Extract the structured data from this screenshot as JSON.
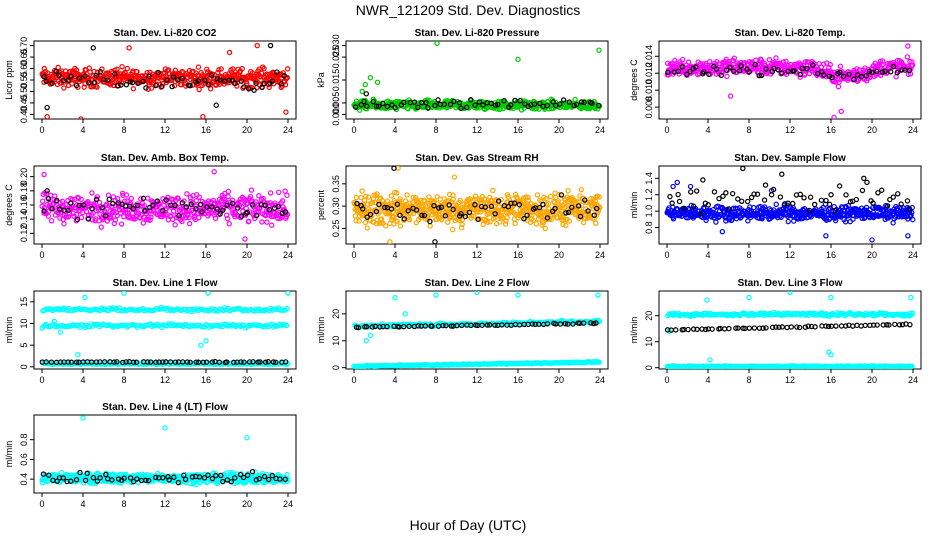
{
  "title": "NWR_121209  Std. Dev. Diagnostics",
  "xlabel": "Hour of Day (UTC)",
  "colors": {
    "co2": "#ff0000",
    "pressure": "#00cc00",
    "temp": "#ff00ff",
    "rh": "#ffa500",
    "flow": "#0000ff",
    "line": "#00ffff",
    "highlight": "#000000"
  },
  "chart_data": [
    {
      "type": "scatter",
      "title": "Stan. Dev. Li-820 CO2",
      "ylabel": "Licor ppm",
      "xlim": [
        0,
        24
      ],
      "xticks": [
        0,
        4,
        8,
        12,
        16,
        20,
        24
      ],
      "ylim": [
        0.38,
        0.72
      ],
      "yticks": [
        "0.40",
        "0.45",
        "0.50",
        "0.55",
        "0.60",
        "0.65",
        "0.70"
      ],
      "series": [
        {
          "color": "co2",
          "band": [
            0.5,
            0.62
          ],
          "n": 450,
          "outliers": [
            [
              0.5,
              0.39
            ],
            [
              3.8,
              0.38
            ],
            [
              8.5,
              0.69
            ],
            [
              15.7,
              0.39
            ],
            [
              18.3,
              0.67
            ],
            [
              21,
              0.7
            ],
            [
              23.8,
              0.41
            ]
          ]
        },
        {
          "color": "highlight",
          "band": [
            0.49,
            0.6
          ],
          "n": 60,
          "outliers": [
            [
              0.5,
              0.43
            ],
            [
              5,
              0.69
            ],
            [
              17,
              0.44
            ],
            [
              22.3,
              0.7
            ]
          ]
        }
      ]
    },
    {
      "type": "scatter",
      "title": "Stan. Dev. Li-820 Pressure",
      "ylabel": "kPa",
      "xlim": [
        0,
        24
      ],
      "xticks": [
        0,
        4,
        8,
        12,
        16,
        20,
        24
      ],
      "ylim": [
        -0.002,
        0.032
      ],
      "yticks": [
        "0.000",
        "0.005",
        "0.015",
        "0.025",
        "0.030"
      ],
      "series": [
        {
          "color": "pressure",
          "band": [
            0.001,
            0.007
          ],
          "n": 450,
          "outliers": [
            [
              1.1,
              0.013
            ],
            [
              1.6,
              0.016
            ],
            [
              2.3,
              0.014
            ],
            [
              8.1,
              0.031
            ],
            [
              16,
              0.024
            ],
            [
              23.9,
              0.028
            ],
            [
              0.8,
              0.01
            ]
          ]
        },
        {
          "color": "highlight",
          "band": [
            0.002,
            0.007
          ],
          "n": 60,
          "outliers": [
            [
              1.2,
              0.009
            ]
          ]
        }
      ]
    },
    {
      "type": "scatter",
      "title": "Stan. Dev. Li-820 Temp.",
      "ylabel": "degrees C",
      "xlim": [
        0,
        24
      ],
      "xticks": [
        0,
        4,
        8,
        12,
        16,
        20,
        24
      ],
      "ylim": [
        0.0066,
        0.0158
      ],
      "yticks": [
        "0.008",
        "0.010",
        "0.012",
        "0.014"
      ],
      "series": [
        {
          "color": "temp",
          "band": [
            0.0112,
            0.0142
          ],
          "n": 450,
          "dip": true,
          "outliers": [
            [
              16.3,
              0.0068
            ],
            [
              23.5,
              0.0152
            ],
            [
              6.2,
              0.0093
            ],
            [
              17,
              0.0075
            ]
          ]
        },
        {
          "color": "highlight",
          "band": [
            0.0115,
            0.0132
          ],
          "n": 60,
          "dip": true,
          "outliers": []
        }
      ]
    },
    {
      "type": "scatter",
      "title": "Stan. Dev. Amb. Box Temp.",
      "ylabel": "degrees C",
      "xlim": [
        0,
        24
      ],
      "xticks": [
        0,
        4,
        8,
        12,
        16,
        20,
        24
      ],
      "ylim": [
        0.105,
        0.215
      ],
      "yticks": [
        "0.12",
        "0.14",
        "0.16",
        "0.18",
        "0.20"
      ],
      "series": [
        {
          "color": "temp",
          "band": [
            0.125,
            0.185
          ],
          "n": 450,
          "outliers": [
            [
              16.8,
              0.207
            ],
            [
              19.8,
              0.112
            ],
            [
              0.2,
              0.203
            ]
          ]
        },
        {
          "color": "highlight",
          "band": [
            0.13,
            0.18
          ],
          "n": 60,
          "outliers": [
            [
              0.5,
              0.18
            ]
          ]
        }
      ]
    },
    {
      "type": "scatter",
      "title": "Stan. Dev. Gas Stream RH",
      "ylabel": "percent",
      "xlim": [
        0,
        24
      ],
      "xticks": [
        0,
        4,
        8,
        12,
        16,
        20,
        24
      ],
      "ylim": [
        0.215,
        0.39
      ],
      "yticks": [
        "0.25",
        "0.30",
        "0.35"
      ],
      "series": [
        {
          "color": "rh",
          "band": [
            0.24,
            0.345
          ],
          "n": 600,
          "outliers": [
            [
              4.3,
              0.385
            ],
            [
              9.8,
              0.365
            ],
            [
              3.5,
              0.22
            ]
          ]
        },
        {
          "color": "highlight",
          "band": [
            0.255,
            0.33
          ],
          "n": 60,
          "outliers": [
            [
              3.9,
              0.385
            ],
            [
              7.9,
              0.22
            ]
          ]
        }
      ]
    },
    {
      "type": "scatter",
      "title": "Stan. Dev. Sample Flow",
      "ylabel": "ml/min",
      "xlim": [
        0,
        24
      ],
      "xticks": [
        0,
        4,
        8,
        12,
        16,
        20,
        24
      ],
      "ylim": [
        0.6,
        1.55
      ],
      "yticks": [
        "0.8",
        "1.0",
        "1.2",
        "1.4"
      ],
      "series": [
        {
          "color": "flow",
          "band": [
            0.85,
            1.1
          ],
          "n": 500,
          "outliers": [
            [
              0.6,
              1.3
            ],
            [
              1,
              1.35
            ],
            [
              2.3,
              1.3
            ],
            [
              5.4,
              0.75
            ],
            [
              10.2,
              1.25
            ],
            [
              15.5,
              0.7
            ],
            [
              20,
              0.65
            ],
            [
              23.5,
              0.7
            ]
          ]
        },
        {
          "color": "highlight",
          "band": [
            0.9,
            1.4
          ],
          "n": 60,
          "outliers": [
            [
              7.4,
              1.52
            ],
            [
              11.2,
              1.45
            ],
            [
              3.5,
              1.38
            ],
            [
              19.2,
              1.4
            ]
          ]
        }
      ]
    },
    {
      "type": "scatter",
      "title": "Stan. Dev. Line 1 Flow",
      "ylabel": "ml/min",
      "xlim": [
        0,
        24
      ],
      "xticks": [
        0,
        4,
        8,
        12,
        16,
        20,
        24
      ],
      "ylim": [
        -0.5,
        17.5
      ],
      "yticks": [
        "0",
        "5",
        "10",
        "15"
      ],
      "series": [
        {
          "color": "line",
          "levels": [
            [
              9.5,
              0.6
            ],
            [
              13.2,
              0.6
            ],
            [
              0.7,
              0.25
            ]
          ],
          "n": 450,
          "outliers": [
            [
              4.2,
              16
            ],
            [
              8,
              17
            ],
            [
              16.2,
              17
            ],
            [
              24,
              17
            ],
            [
              3.5,
              2.8
            ],
            [
              15.5,
              5
            ],
            [
              16,
              6
            ],
            [
              1.2,
              10.5
            ],
            [
              1.8,
              8
            ]
          ]
        },
        {
          "color": "highlight",
          "levels": [
            [
              1.1,
              0.15
            ]
          ],
          "n": 60,
          "outliers": []
        }
      ]
    },
    {
      "type": "scatter",
      "title": "Stan. Dev. Line 2 Flow",
      "ylabel": "ml/min",
      "xlim": [
        0,
        24
      ],
      "xticks": [
        0,
        4,
        8,
        12,
        16,
        20,
        24
      ],
      "ylim": [
        -0.5,
        28.5
      ],
      "yticks": [
        "0",
        "10",
        "20"
      ],
      "series": [
        {
          "color": "line",
          "levels": [
            [
              0.5,
              0.3
            ],
            [
              15.5,
              0.8
            ]
          ],
          "n": 450,
          "ramp": 1.6,
          "outliers": [
            [
              4,
              26
            ],
            [
              8,
              27
            ],
            [
              12,
              28
            ],
            [
              16,
              27
            ],
            [
              23.8,
              27
            ],
            [
              1.2,
              10
            ],
            [
              1.6,
              12
            ],
            [
              5,
              20
            ]
          ]
        },
        {
          "color": "highlight",
          "levels": [
            [
              15,
              0.3
            ]
          ],
          "n": 60,
          "ramp": 1.6,
          "outliers": []
        }
      ]
    },
    {
      "type": "scatter",
      "title": "Stan. Dev. Line 3 Flow",
      "ylabel": "ml/min",
      "xlim": [
        0,
        24
      ],
      "xticks": [
        0,
        4,
        8,
        12,
        16,
        20,
        24
      ],
      "ylim": [
        -0.5,
        29.5
      ],
      "yticks": [
        "0",
        "10",
        "20"
      ],
      "series": [
        {
          "color": "line",
          "levels": [
            [
              0.5,
              0.3
            ],
            [
              20.5,
              0.9
            ]
          ],
          "n": 450,
          "outliers": [
            [
              3.9,
              26
            ],
            [
              8,
              27
            ],
            [
              12,
              29
            ],
            [
              16,
              27
            ],
            [
              23.8,
              27
            ],
            [
              4.2,
              3
            ],
            [
              15.8,
              6
            ],
            [
              16,
              5
            ],
            [
              0.2,
              14
            ]
          ]
        },
        {
          "color": "highlight",
          "levels": [
            [
              14.5,
              0.3
            ]
          ],
          "n": 60,
          "ramp": 2.2,
          "outliers": []
        }
      ]
    },
    {
      "type": "scatter",
      "title": "Stan. Dev. Line 4 (LT) Flow",
      "ylabel": "ml/min",
      "xlim": [
        0,
        24
      ],
      "xticks": [
        0,
        4,
        8,
        12,
        16,
        20,
        24
      ],
      "ylim": [
        0.26,
        1.05
      ],
      "yticks": [
        "0.4",
        "0.6",
        "0.8"
      ],
      "series": [
        {
          "color": "line",
          "band": [
            0.34,
            0.48
          ],
          "n": 600,
          "outliers": [
            [
              4,
              1.02
            ],
            [
              12,
              0.92
            ],
            [
              20,
              0.82
            ]
          ]
        },
        {
          "color": "highlight",
          "band": [
            0.32,
            0.5
          ],
          "n": 60,
          "outliers": []
        }
      ]
    }
  ]
}
